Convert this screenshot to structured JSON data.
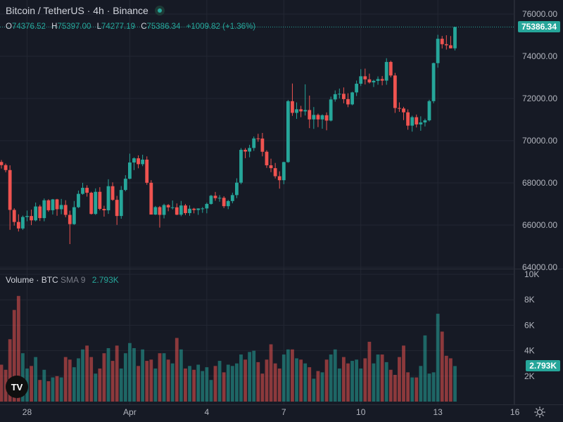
{
  "title": "Bitcoin / TetherUS · 4h · Binance",
  "ohlc": {
    "o_label": "O",
    "o": "74376.52",
    "h_label": "H",
    "h": "75397.00",
    "l_label": "L",
    "l": "74277.19",
    "c_label": "C",
    "c": "75386.34",
    "change": "+1009.82 (+1.36%)"
  },
  "price_tag": "75386.34",
  "volume_legend": {
    "name": "Volume · BTC",
    "sma": "SMA 9",
    "value": "2.793K"
  },
  "volume_tag": "2.793K",
  "logo_text": "TV",
  "icons": {
    "live": "live-status-icon",
    "logo": "tradingview-logo-icon",
    "settings": "settings-sun-icon"
  },
  "colors": {
    "up": "#26a69a",
    "down": "#ef5350",
    "background": "#161a25",
    "grid": "#232733"
  },
  "chart_data": [
    {
      "type": "candlestick",
      "x_ticks": [
        "28",
        "Apr",
        "4",
        "7",
        "10",
        "13",
        "16"
      ],
      "y_ticks": [
        "76000.00",
        "74000.00",
        "72000.00",
        "70000.00",
        "68000.00",
        "66000.00",
        "64000.00"
      ],
      "ylim": [
        64000,
        76000
      ],
      "last_price": 75386.34,
      "ohlc": [
        [
          68990,
          69085,
          68678,
          68841
        ],
        [
          68841,
          68914,
          68501,
          68607
        ],
        [
          68607,
          68832,
          65775,
          66719
        ],
        [
          66719,
          66797,
          65974,
          66147
        ],
        [
          66147,
          66510,
          65695,
          65839
        ],
        [
          65839,
          66452,
          65771,
          66383
        ],
        [
          66383,
          66689,
          66181,
          66429
        ],
        [
          66429,
          66733,
          65998,
          66224
        ],
        [
          66224,
          67068,
          66176,
          66881
        ],
        [
          66881,
          66961,
          66193,
          66330
        ],
        [
          66330,
          67259,
          66178,
          67174
        ],
        [
          67174,
          67224,
          66630,
          66703
        ],
        [
          66703,
          67239,
          66500,
          67217
        ],
        [
          67217,
          67244,
          66440,
          66750
        ],
        [
          66750,
          67239,
          66512,
          66952
        ],
        [
          66952,
          67177,
          66369,
          66483
        ],
        [
          66483,
          66681,
          65099,
          66044
        ],
        [
          66044,
          67142,
          66011,
          66847
        ],
        [
          66847,
          67636,
          66808,
          67479
        ],
        [
          67479,
          68001,
          67437,
          67765
        ],
        [
          67765,
          67887,
          67347,
          67532
        ],
        [
          67532,
          67581,
          66500,
          66527
        ],
        [
          66527,
          67738,
          66484,
          67576
        ],
        [
          67576,
          67795,
          66699,
          66766
        ],
        [
          66766,
          66916,
          66401,
          66699
        ],
        [
          66699,
          68169,
          66530,
          67842
        ],
        [
          67842,
          68025,
          67149,
          67195
        ],
        [
          67195,
          67383,
          66009,
          66430
        ],
        [
          66430,
          67851,
          66300,
          67663
        ],
        [
          67663,
          68364,
          67601,
          68196
        ],
        [
          68196,
          69385,
          68170,
          68965
        ],
        [
          68965,
          69210,
          68605,
          69164
        ],
        [
          69164,
          69304,
          68691,
          68886
        ],
        [
          68886,
          69334,
          68791,
          69101
        ],
        [
          69101,
          69256,
          67909,
          68005
        ],
        [
          68005,
          68128,
          66500,
          66498
        ],
        [
          66498,
          66905,
          66478,
          66850
        ],
        [
          66850,
          66904,
          65880,
          66484
        ],
        [
          66484,
          67010,
          66317,
          66949
        ],
        [
          66949,
          66994,
          66655,
          66840
        ],
        [
          66840,
          67164,
          66739,
          66841
        ],
        [
          66841,
          67027,
          66471,
          66491
        ],
        [
          66491,
          67144,
          66418,
          66928
        ],
        [
          66928,
          67001,
          66474,
          66567
        ],
        [
          66567,
          66935,
          66439,
          66774
        ],
        [
          66774,
          66815,
          66556,
          66716
        ],
        [
          66716,
          66793,
          66484,
          66786
        ],
        [
          66786,
          66852,
          66580,
          66788
        ],
        [
          66788,
          67065,
          66557,
          67002
        ],
        [
          67002,
          67432,
          66967,
          67389
        ],
        [
          67389,
          67569,
          67154,
          67276
        ],
        [
          67276,
          67417,
          67106,
          67291
        ],
        [
          67291,
          67368,
          66805,
          66895
        ],
        [
          66895,
          67192,
          66754,
          67138
        ],
        [
          67138,
          67535,
          67032,
          67421
        ],
        [
          67421,
          68217,
          67277,
          68011
        ],
        [
          68011,
          69648,
          67938,
          69566
        ],
        [
          69566,
          69650,
          69169,
          69484
        ],
        [
          69484,
          69804,
          69212,
          69653
        ],
        [
          69653,
          70198,
          69517,
          70106
        ],
        [
          70106,
          70325,
          69950,
          70101
        ],
        [
          70101,
          70367,
          69258,
          69475
        ],
        [
          69475,
          69547,
          68710,
          68833
        ],
        [
          68833,
          69146,
          68506,
          68697
        ],
        [
          68697,
          68944,
          68211,
          68315
        ],
        [
          68315,
          68547,
          67726,
          68126
        ],
        [
          68126,
          69002,
          67937,
          68985
        ],
        [
          68985,
          71929,
          68952,
          71872
        ],
        [
          71872,
          72709,
          71175,
          71318
        ],
        [
          71318,
          71813,
          71032,
          71488
        ],
        [
          71488,
          71651,
          71111,
          71387
        ],
        [
          71387,
          72670,
          71193,
          71452
        ],
        [
          71452,
          72136,
          70593,
          71008
        ],
        [
          71008,
          71595,
          70558,
          71220
        ],
        [
          71220,
          71284,
          70643,
          71007
        ],
        [
          71007,
          71244,
          70568,
          71206
        ],
        [
          71206,
          71339,
          70491,
          70952
        ],
        [
          70952,
          72086,
          70912,
          71954
        ],
        [
          71954,
          72381,
          71849,
          72204
        ],
        [
          72204,
          72469,
          72004,
          72222
        ],
        [
          72222,
          72523,
          71771,
          71969
        ],
        [
          71969,
          72246,
          71588,
          71719
        ],
        [
          71719,
          72317,
          71677,
          72287
        ],
        [
          72287,
          72849,
          72115,
          72699
        ],
        [
          72699,
          73389,
          72591,
          73053
        ],
        [
          73053,
          73415,
          72662,
          72907
        ],
        [
          72907,
          73178,
          72709,
          72762
        ],
        [
          72762,
          72887,
          72543,
          72836
        ],
        [
          72836,
          73046,
          72651,
          72919
        ],
        [
          72919,
          73063,
          72623,
          72846
        ],
        [
          72846,
          73908,
          72649,
          73731
        ],
        [
          73731,
          73789,
          73000,
          73089
        ],
        [
          73089,
          73213,
          71317,
          71547
        ],
        [
          71547,
          71814,
          71367,
          71524
        ],
        [
          71524,
          71604,
          70973,
          71344
        ],
        [
          71344,
          71484,
          70518,
          70712
        ],
        [
          70712,
          71183,
          70428,
          71113
        ],
        [
          71113,
          71238,
          70626,
          70770
        ],
        [
          70770,
          71154,
          70470,
          70864
        ],
        [
          70864,
          71041,
          70673,
          70964
        ],
        [
          70964,
          71939,
          70913,
          71873
        ],
        [
          71873,
          73700,
          71774,
          73675
        ],
        [
          73675,
          75018,
          73459,
          74829
        ],
        [
          74829,
          74962,
          74369,
          74572
        ],
        [
          74572,
          74997,
          74316,
          74520
        ],
        [
          74520,
          74959,
          74373,
          74377
        ],
        [
          74376.52,
          75397,
          74277.19,
          75386.34
        ]
      ]
    },
    {
      "type": "bar",
      "series": [
        {
          "name": "Volume · BTC",
          "last_value": "2.793K"
        }
      ],
      "y_ticks": [
        "10K",
        "8K",
        "6K",
        "4K",
        "2K"
      ],
      "ylim": [
        0,
        10000
      ],
      "values": [
        2900,
        2500,
        4900,
        7200,
        8300,
        3800,
        2600,
        2800,
        3500,
        1700,
        2500,
        1600,
        1900,
        2000,
        1900,
        3500,
        3300,
        2700,
        3400,
        4100,
        4400,
        3500,
        2200,
        2600,
        3800,
        4200,
        3200,
        4400,
        2600,
        3800,
        4600,
        4200,
        2800,
        4100,
        3200,
        3300,
        2600,
        3800,
        3800,
        3300,
        3000,
        5000,
        4100,
        2600,
        2800,
        2500,
        2900,
        2400,
        2700,
        1700,
        2800,
        3200,
        2300,
        2900,
        2800,
        3000,
        3700,
        3300,
        3900,
        4000,
        3100,
        2200,
        3300,
        4500,
        3000,
        2600,
        3700,
        4100,
        4100,
        3400,
        3300,
        3000,
        2700,
        1800,
        2400,
        2300,
        3300,
        3700,
        4100,
        2600,
        3500,
        3000,
        3200,
        3300,
        2600,
        3400,
        4700,
        3000,
        3700,
        3700,
        3100,
        2500,
        2100,
        3500,
        4400,
        2300,
        1900,
        1900,
        2800,
        5200,
        2200,
        2300,
        6900,
        5500,
        3600,
        3400,
        2793
      ]
    }
  ]
}
